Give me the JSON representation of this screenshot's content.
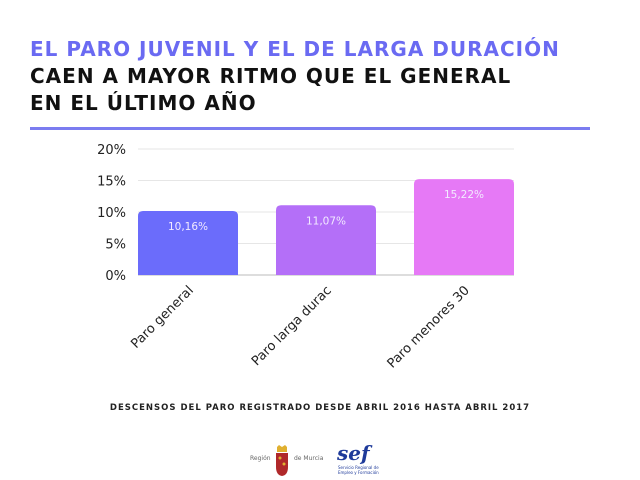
{
  "title": {
    "line1": "EL PARO JUVENIL Y EL DE LARGA DURACIÓN",
    "line2": "CAEN A MAYOR RITMO QUE EL GENERAL",
    "line3": "EN EL ÚLTIMO AÑO"
  },
  "chart_data": {
    "type": "bar",
    "categories": [
      "Paro general",
      "Paro larga durac",
      "Paro menores 30"
    ],
    "values": [
      10.16,
      11.07,
      15.22
    ],
    "data_labels": [
      "10,16%",
      "11,07%",
      "15,22%"
    ],
    "colors": [
      "#6b6cfb",
      "#b46ff8",
      "#e679f6"
    ],
    "yticks": [
      "0%",
      "5%",
      "10%",
      "15%",
      "20%"
    ],
    "ylim": [
      0,
      20
    ],
    "grid": true,
    "xlabel": "",
    "ylabel": ""
  },
  "footer": "DESCENSOS DEL PARO REGISTRADO DESDE ABRIL 2016 HASTA ABRIL 2017",
  "logos": {
    "murcia_left": "Región",
    "murcia_right": "de Murcia",
    "sef": "sef",
    "sef_caption_1": "Servicio Regional de",
    "sef_caption_2": "Empleo y Formación"
  }
}
